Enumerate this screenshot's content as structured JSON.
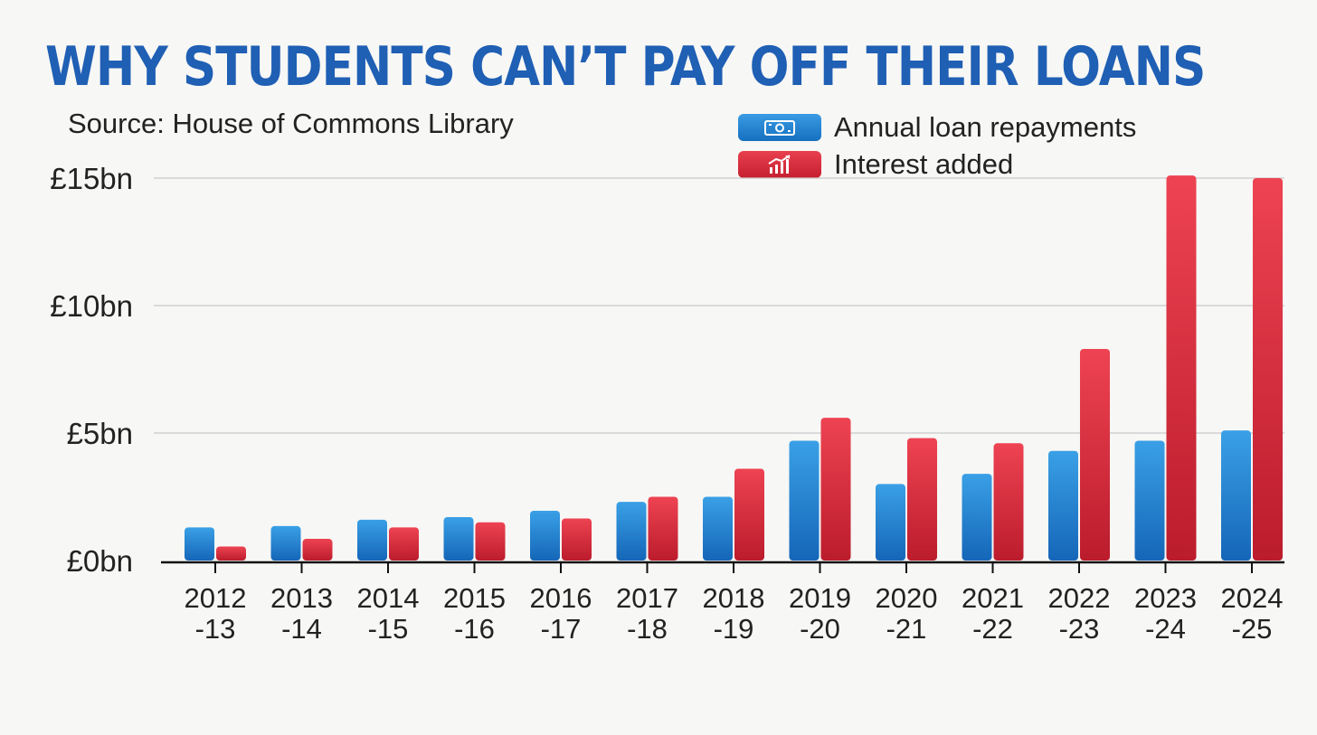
{
  "chart_data": {
    "type": "bar",
    "title": "WHY STUDENTS CAN’T PAY OFF THEIR LOANS",
    "subtitle": "Source: House of Commons Library",
    "categories": [
      [
        "2012",
        "-13"
      ],
      [
        "2013",
        "-14"
      ],
      [
        "2014",
        "-15"
      ],
      [
        "2015",
        "-16"
      ],
      [
        "2016",
        "-17"
      ],
      [
        "2017",
        "-18"
      ],
      [
        "2018",
        "-19"
      ],
      [
        "2019",
        "-20"
      ],
      [
        "2020",
        "-21"
      ],
      [
        "2021",
        "-22"
      ],
      [
        "2022",
        "-23"
      ],
      [
        "2023",
        "-24"
      ],
      [
        "2024",
        "-25"
      ]
    ],
    "series": [
      {
        "name": "Annual loan repayments",
        "color": "#1b7fd0",
        "icon": "banknote-icon",
        "values": [
          1.3,
          1.35,
          1.6,
          1.7,
          1.95,
          2.3,
          2.5,
          4.7,
          3.0,
          3.4,
          4.3,
          4.7,
          5.1
        ]
      },
      {
        "name": "Interest added",
        "color": "#d92a3c",
        "icon": "rising-chart-icon",
        "values": [
          0.55,
          0.85,
          1.3,
          1.5,
          1.65,
          2.5,
          3.6,
          5.6,
          4.8,
          4.6,
          8.3,
          15.1,
          15.0
        ]
      }
    ],
    "yticks": [
      "£0bn",
      "£5bn",
      "£10bn",
      "£15bn"
    ],
    "ytick_values": [
      0,
      5,
      10,
      15
    ],
    "ylim": [
      0,
      15
    ],
    "grid": true,
    "legend_position": "top-right"
  }
}
